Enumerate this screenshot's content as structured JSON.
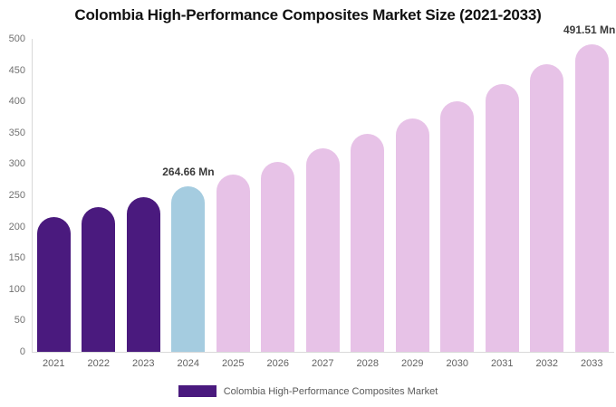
{
  "chart": {
    "title": "Colombia High-Performance Composites Market Size (2021-2033)"
  },
  "chart_data": {
    "type": "bar",
    "title": "Colombia High-Performance Composites Market Size (2021-2033)",
    "categories": [
      "2021",
      "2022",
      "2023",
      "2024",
      "2025",
      "2026",
      "2027",
      "2028",
      "2029",
      "2030",
      "2031",
      "2032",
      "2033"
    ],
    "values": [
      215.3,
      230.6,
      247.1,
      264.66,
      283.5,
      303.7,
      325.3,
      348.5,
      373.4,
      399.9,
      428.4,
      459.0,
      491.51
    ],
    "segments": [
      "historical",
      "historical",
      "historical",
      "current",
      "forecast",
      "forecast",
      "forecast",
      "forecast",
      "forecast",
      "forecast",
      "forecast",
      "forecast",
      "forecast"
    ],
    "xlabel": "",
    "ylabel": "",
    "ylim": [
      0,
      500
    ],
    "ytick_step": 50,
    "grid": false,
    "annotations": [
      {
        "category": "2024",
        "text": "264.66 Mn"
      },
      {
        "category": "2033",
        "text": "491.51 Mn"
      }
    ],
    "legend": {
      "position": "bottom",
      "label": "Colombia High-Performance Composites Market"
    },
    "colors": {
      "historical": "#4a1a7e",
      "current": "#a5cce0",
      "forecast": "#e7c2e7",
      "axis_line": "#d9d9d9",
      "tick_label": "#717171",
      "annotation_text": "#3a3a3a",
      "title_text": "#111111"
    }
  }
}
